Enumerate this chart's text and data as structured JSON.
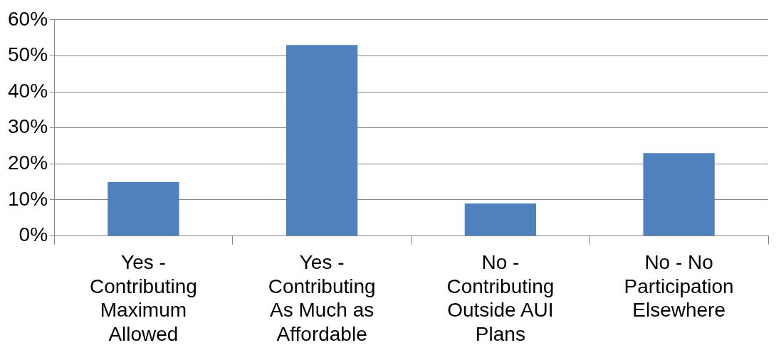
{
  "chart_data": {
    "type": "bar",
    "categories": [
      "Yes - Contributing Maximum Allowed",
      "Yes - Contributing As Much as Affordable",
      "No - Contributing Outside AUI Plans",
      "No - No Participation Elsewhere"
    ],
    "values": [
      15,
      53,
      9,
      23
    ],
    "color": "#4f81bd",
    "ylim": [
      0,
      60
    ],
    "yticks": [
      {
        "value": 0,
        "label": "0%"
      },
      {
        "value": 10,
        "label": "10%"
      },
      {
        "value": 20,
        "label": "20%"
      },
      {
        "value": 30,
        "label": "30%"
      },
      {
        "value": 40,
        "label": "40%"
      },
      {
        "value": 50,
        "label": "50%"
      },
      {
        "value": 60,
        "label": "60%"
      }
    ],
    "grid": "y",
    "legend": false
  }
}
